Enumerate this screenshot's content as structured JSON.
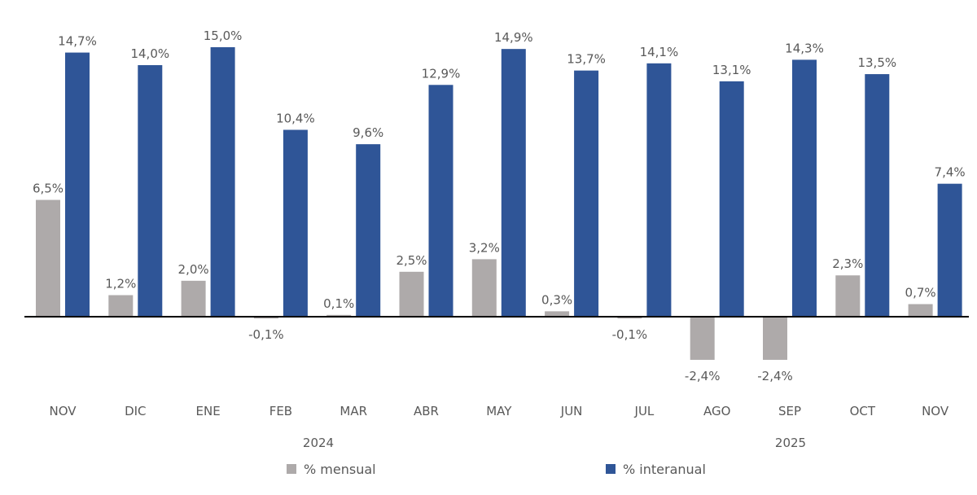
{
  "chart_data": {
    "type": "bar",
    "categories": [
      "NOV",
      "DIC",
      "ENE",
      "FEB",
      "MAR",
      "ABR",
      "MAY",
      "JUN",
      "JUL",
      "AGO",
      "SEP",
      "OCT",
      "NOV"
    ],
    "year_labels": [
      "2024",
      "2025"
    ],
    "series": [
      {
        "name": "% mensual",
        "color": "#aeaaaa",
        "values": [
          6.5,
          1.2,
          2.0,
          -0.1,
          0.1,
          2.5,
          3.2,
          0.3,
          -0.1,
          -2.4,
          -2.4,
          2.3,
          0.7
        ],
        "labels": [
          "6,5%",
          "1,2%",
          "2,0%",
          "-0,1%",
          "0,1%",
          "2,5%",
          "3,2%",
          "0,3%",
          "-0,1%",
          "-2,4%",
          "-2,4%",
          "2,3%",
          "0,7%"
        ]
      },
      {
        "name": "% interanual",
        "color": "#2f5597",
        "values": [
          14.7,
          14.0,
          15.0,
          10.4,
          9.6,
          12.9,
          14.9,
          13.7,
          14.1,
          13.1,
          14.3,
          13.5,
          7.4
        ],
        "labels": [
          "14,7%",
          "14,0%",
          "15,0%",
          "10,4%",
          "9,6%",
          "12,9%",
          "14,9%",
          "13,7%",
          "14,1%",
          "13,1%",
          "14,3%",
          "13,5%",
          "7,4%"
        ]
      }
    ],
    "legend_position": "bottom",
    "grid": false
  }
}
